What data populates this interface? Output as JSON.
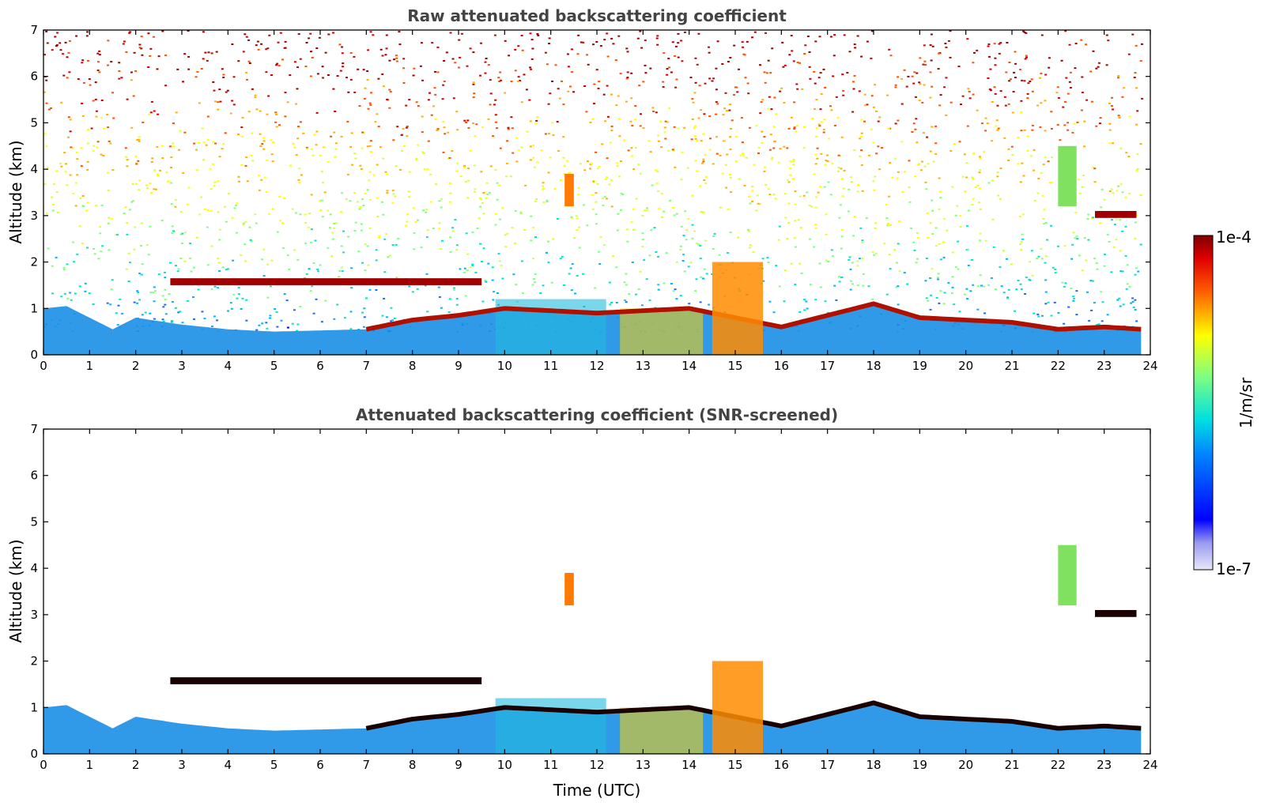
{
  "chart_data": [
    {
      "type": "heatmap",
      "title": "Raw attenuated backscattering coefficient",
      "xlabel": "",
      "ylabel": "Altitude (km)",
      "xlim": [
        0,
        24
      ],
      "ylim": [
        0,
        7
      ],
      "x_ticks": [
        "0",
        "1",
        "2",
        "3",
        "4",
        "5",
        "6",
        "7",
        "8",
        "9",
        "10",
        "11",
        "12",
        "13",
        "14",
        "15",
        "16",
        "17",
        "18",
        "19",
        "20",
        "21",
        "22",
        "23",
        "24"
      ],
      "y_ticks": [
        "0",
        "1",
        "2",
        "3",
        "4",
        "5",
        "6",
        "7"
      ],
      "data_end_time": 23.8,
      "noise": "high",
      "features": [
        {
          "name": "boundary layer aerosol",
          "start": 0,
          "end": 23.8,
          "top_km": [
            [
              0,
              1.0
            ],
            [
              0.5,
              1.05
            ],
            [
              1.5,
              0.55
            ],
            [
              2,
              0.8
            ],
            [
              3,
              0.65
            ],
            [
              4,
              0.55
            ],
            [
              5,
              0.5
            ],
            [
              7,
              0.55
            ],
            [
              8,
              0.75
            ],
            [
              9,
              0.85
            ],
            [
              10,
              1.0
            ],
            [
              12,
              0.9
            ],
            [
              14,
              1.0
            ],
            [
              16,
              0.6
            ],
            [
              18,
              1.1
            ],
            [
              19,
              0.8
            ],
            [
              21,
              0.7
            ],
            [
              22,
              0.55
            ],
            [
              23,
              0.6
            ],
            [
              23.8,
              0.55
            ]
          ],
          "color": "#1a8fe6"
        },
        {
          "name": "aerosol layer top",
          "start": 7,
          "end": 23.8,
          "thickness_km": 0.1,
          "color": "#b01000"
        },
        {
          "name": "cloud layer 1.6 km",
          "start": 2.75,
          "end": 9.5,
          "base_km": 1.5,
          "top_km": 1.65,
          "color": "#a00000"
        },
        {
          "name": "cloud layer 3 km",
          "start": 22.8,
          "end": 23.7,
          "base_km": 2.95,
          "top_km": 3.1,
          "color": "#a00000"
        },
        {
          "name": "convective plume",
          "start": 14.5,
          "end": 15.6,
          "top_km": 2.0,
          "color": "#ff8c00"
        },
        {
          "name": "elevated aerosol 22h",
          "start": 22.0,
          "end": 22.4,
          "base_km": 3.2,
          "top_km": 4.5,
          "color": "#80e060"
        },
        {
          "name": "plume 11.3h",
          "start": 11.3,
          "end": 11.5,
          "base_km": 3.2,
          "top_km": 3.9,
          "color": "#ff7a00"
        }
      ]
    },
    {
      "type": "heatmap",
      "title": "Attenuated backscattering coefficient (SNR-screened)",
      "xlabel": "Time (UTC)",
      "ylabel": "Altitude (km)",
      "xlim": [
        0,
        24
      ],
      "ylim": [
        0,
        7
      ],
      "x_ticks": [
        "0",
        "1",
        "2",
        "3",
        "4",
        "5",
        "6",
        "7",
        "8",
        "9",
        "10",
        "11",
        "12",
        "13",
        "14",
        "15",
        "16",
        "17",
        "18",
        "19",
        "20",
        "21",
        "22",
        "23",
        "24"
      ],
      "y_ticks": [
        "0",
        "1",
        "2",
        "3",
        "4",
        "5",
        "6",
        "7"
      ],
      "data_end_time": 23.8,
      "noise": "screened",
      "features": [
        {
          "name": "boundary layer aerosol",
          "start": 0,
          "end": 23.8,
          "top_km": [
            [
              0,
              1.0
            ],
            [
              0.5,
              1.05
            ],
            [
              1.5,
              0.55
            ],
            [
              2,
              0.8
            ],
            [
              3,
              0.65
            ],
            [
              4,
              0.55
            ],
            [
              5,
              0.5
            ],
            [
              7,
              0.55
            ],
            [
              8,
              0.75
            ],
            [
              9,
              0.85
            ],
            [
              10,
              1.0
            ],
            [
              12,
              0.9
            ],
            [
              14,
              1.0
            ],
            [
              16,
              0.6
            ],
            [
              18,
              1.1
            ],
            [
              19,
              0.8
            ],
            [
              21,
              0.7
            ],
            [
              22,
              0.55
            ],
            [
              23,
              0.6
            ],
            [
              23.8,
              0.55
            ]
          ],
          "color": "#1a8fe6"
        },
        {
          "name": "aerosol layer top",
          "start": 7,
          "end": 23.8,
          "thickness_km": 0.1,
          "color": "#1a0000"
        },
        {
          "name": "cloud layer 1.6 km",
          "start": 2.75,
          "end": 9.5,
          "base_km": 1.5,
          "top_km": 1.65,
          "color": "#1a0000"
        },
        {
          "name": "cloud layer 3 km",
          "start": 22.8,
          "end": 23.7,
          "base_km": 2.95,
          "top_km": 3.1,
          "color": "#1a0000"
        },
        {
          "name": "convective plume",
          "start": 14.5,
          "end": 15.6,
          "top_km": 2.0,
          "color": "#ff8c00"
        },
        {
          "name": "elevated aerosol 22h",
          "start": 22.0,
          "end": 22.4,
          "base_km": 3.2,
          "top_km": 4.5,
          "color": "#80e060"
        },
        {
          "name": "plume 11.3h",
          "start": 11.3,
          "end": 11.5,
          "base_km": 3.2,
          "top_km": 3.9,
          "color": "#ff7a00"
        }
      ]
    }
  ],
  "colorbar": {
    "label": "1/m/sr",
    "max_label": "1e-4",
    "min_label": "1e-7",
    "scale": "log",
    "colors": [
      "#e8e8f8",
      "#0000ff",
      "#00c8ff",
      "#80ff80",
      "#ffff00",
      "#ff6000",
      "#800000"
    ]
  }
}
